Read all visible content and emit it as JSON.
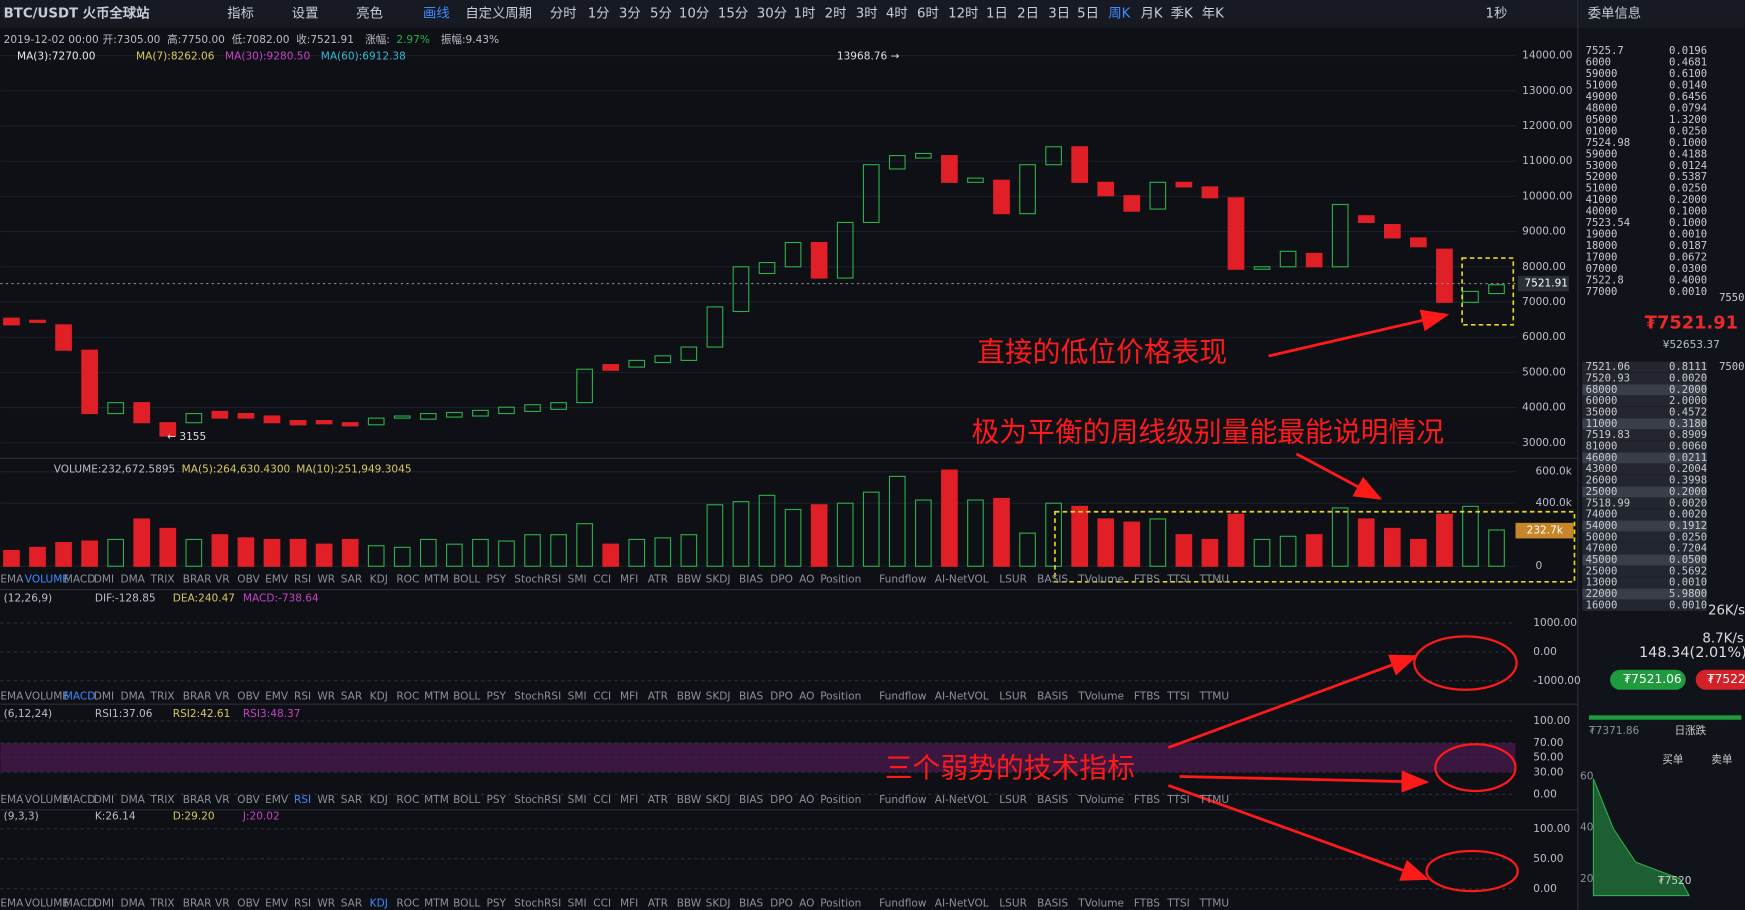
{
  "toolbar": {
    "symbol": "BTC/USDT 火币全球站",
    "tools": [
      "指标",
      "设置",
      "亮色",
      "画线"
    ],
    "period_menu": "自定义周期",
    "periods": [
      "分时",
      "1分",
      "3分",
      "5分",
      "10分",
      "15分",
      "30分",
      "1时",
      "2时",
      "3时",
      "4时",
      "6时",
      "12时",
      "1日",
      "2日",
      "3日",
      "5日",
      "周K",
      "月K",
      "季K",
      "年K"
    ],
    "active_period": "周K",
    "refresh": "1秒",
    "side_title": "委单信息"
  },
  "info": {
    "date": "2019-12-02 00:00",
    "items": [
      "开:7305.00",
      "高:7750.00",
      "低:7082.00",
      "收:7521.91"
    ],
    "change": "涨幅:",
    "change_value": "2.97%",
    "amplitude": "振幅:9.43%"
  },
  "ma": [
    {
      "label": "MA(3):7270.00",
      "color": "#e8e8e8"
    },
    {
      "label": "MA(7):8262.06",
      "color": "#d6c85a"
    },
    {
      "label": "MA(30):9280.50",
      "color": "#c543c5"
    },
    {
      "label": "MA(60):6912.38",
      "color": "#38b6d6"
    }
  ],
  "price": {
    "yticks": [
      {
        "value": 14000,
        "label": "14000.00"
      },
      {
        "value": 13000,
        "label": "13000.00"
      },
      {
        "value": 12000,
        "label": "12000.00"
      },
      {
        "value": 11000,
        "label": "11000.00"
      },
      {
        "value": 10000,
        "label": "10000.00"
      },
      {
        "value": 9000,
        "label": "9000.00"
      },
      {
        "value": 8000,
        "label": "8000.00"
      },
      {
        "value": 7000,
        "label": "7000.00"
      },
      {
        "value": 6000,
        "label": "6000.00"
      },
      {
        "value": 5000,
        "label": "5000.00"
      },
      {
        "value": 4000,
        "label": "4000.00"
      },
      {
        "value": 3000,
        "label": "3000.00"
      }
    ],
    "last": {
      "value": 7521.91,
      "label": "7521.91"
    },
    "high_label": "13968.76 →",
    "low_label": "← 3155",
    "up_color": "#2bb04a",
    "down_color": "#e01f26",
    "candles": [
      [
        6540,
        6350
      ],
      [
        6480,
        6420
      ],
      [
        6350,
        5630
      ],
      [
        5630,
        3830
      ],
      [
        3830,
        4140
      ],
      [
        4140,
        3570
      ],
      [
        3570,
        3190
      ],
      [
        3570,
        3830
      ],
      [
        3890,
        3700
      ],
      [
        3830,
        3700
      ],
      [
        3760,
        3570
      ],
      [
        3630,
        3510
      ],
      [
        3630,
        3540
      ],
      [
        3570,
        3480
      ],
      [
        3510,
        3700
      ],
      [
        3700,
        3760
      ],
      [
        3670,
        3830
      ],
      [
        3730,
        3860
      ],
      [
        3760,
        3920
      ],
      [
        3830,
        4010
      ],
      [
        3890,
        4080
      ],
      [
        3950,
        4140
      ],
      [
        4140,
        5090
      ],
      [
        5220,
        5060
      ],
      [
        5150,
        5340
      ],
      [
        5280,
        5470
      ],
      [
        5340,
        5720
      ],
      [
        5720,
        6860
      ],
      [
        6730,
        8000
      ],
      [
        7810,
        8120
      ],
      [
        8000,
        8690
      ],
      [
        8690,
        7680
      ],
      [
        7680,
        9260
      ],
      [
        9260,
        10900
      ],
      [
        10780,
        11160
      ],
      [
        11090,
        11220
      ],
      [
        11160,
        10400
      ],
      [
        10400,
        10520
      ],
      [
        10460,
        9510
      ],
      [
        9510,
        10900
      ],
      [
        10900,
        11410
      ],
      [
        11410,
        10400
      ],
      [
        10400,
        10020
      ],
      [
        10020,
        9580
      ],
      [
        9640,
        10400
      ],
      [
        10400,
        10270
      ],
      [
        10270,
        9960
      ],
      [
        9960,
        7930
      ],
      [
        7930,
        8000
      ],
      [
        8000,
        8440
      ],
      [
        8380,
        8000
      ],
      [
        8000,
        9770
      ],
      [
        9450,
        9260
      ],
      [
        9200,
        8820
      ],
      [
        8820,
        8570
      ],
      [
        8500,
        6990
      ],
      [
        6990,
        7300
      ],
      [
        7240,
        7490
      ]
    ]
  },
  "volume": {
    "header": [
      "VOLUME:232,672.5895",
      "MA(5):264,630.4300",
      "MA(10):251,949.3045"
    ],
    "yticks": [
      {
        "value": 600000,
        "label": "600.0k"
      },
      {
        "value": 400000,
        "label": "400.0k"
      },
      {
        "value": 0,
        "label": "0"
      }
    ],
    "last_label": "232.7k",
    "values": [
      100000,
      120000,
      150000,
      160000,
      170000,
      300000,
      240000,
      170000,
      200000,
      180000,
      170000,
      170000,
      140000,
      170000,
      130000,
      120000,
      170000,
      140000,
      170000,
      160000,
      200000,
      200000,
      270000,
      140000,
      170000,
      180000,
      200000,
      390000,
      410000,
      450000,
      360000,
      390000,
      400000,
      470000,
      570000,
      420000,
      610000,
      420000,
      430000,
      210000,
      400000,
      380000,
      300000,
      280000,
      300000,
      200000,
      170000,
      330000,
      170000,
      190000,
      200000,
      370000,
      300000,
      240000,
      170000,
      330000,
      380000,
      230000
    ]
  },
  "indicator_tabs": [
    "EMA",
    "VOLUME",
    "MACD",
    "DMI",
    "DMA",
    "TRIX",
    "BRAR",
    "VR",
    "OBV",
    "EMV",
    "RSI",
    "WR",
    "SAR",
    "KDJ",
    "ROC",
    "MTM",
    "BOLL",
    "PSY",
    "StochRSI",
    "SMI",
    "CCI",
    "MFI",
    "ATR",
    "BBW",
    "SKDJ",
    "BIAS",
    "DPO",
    "AO",
    "Position",
    "Fundflow",
    "AI-NetVOL",
    "LSUR",
    "BASIS",
    "TVolume",
    "FTBS",
    "TTSI",
    "TTMU"
  ],
  "macd": {
    "header": [
      "(12,26,9)",
      "DIF:-128.85",
      "DEA:240.47",
      "MACD:-738.64"
    ],
    "yticks": [
      {
        "value": 1000,
        "label": "1000.00"
      },
      {
        "value": 0,
        "label": "0.00"
      },
      {
        "value": -1000,
        "label": "-1000.00"
      }
    ]
  },
  "rsi": {
    "header": [
      "(6,12,24)",
      "RSI1:37.06",
      "RSI2:42.61",
      "RSI3:48.37"
    ],
    "yticks": [
      {
        "value": 100,
        "label": "100.00"
      },
      {
        "value": 70,
        "label": "70.00"
      },
      {
        "value": 50,
        "label": "50.00"
      },
      {
        "value": 30,
        "label": "30.00"
      },
      {
        "value": 0,
        "label": "0.00"
      }
    ]
  },
  "kdj": {
    "header": [
      "(9,3,3)",
      "K:26.14",
      "D:29.20",
      "J:20.02"
    ],
    "yticks": [
      {
        "value": 100,
        "label": "100.00"
      },
      {
        "value": 50,
        "label": "50.00"
      },
      {
        "value": 0,
        "label": "0.00"
      }
    ]
  },
  "annotations": [
    "直接的低位价格表现",
    "极为平衡的周线级别量能最能说明情况",
    "三个弱势的技术指标"
  ],
  "orderbook": {
    "asks": [
      [
        "7525.7",
        "0.0196"
      ],
      [
        "6000",
        "0.4681"
      ],
      [
        "59000",
        "0.6100"
      ],
      [
        "51000",
        "0.0140"
      ],
      [
        "49000",
        "0.6456"
      ],
      [
        "48000",
        "0.0794"
      ],
      [
        "05000",
        "1.3200"
      ],
      [
        "01000",
        "0.0250"
      ],
      [
        "7524.98",
        "0.1000"
      ],
      [
        "59000",
        "0.4188"
      ],
      [
        "53000",
        "0.0124"
      ],
      [
        "52000",
        "0.5387"
      ],
      [
        "51000",
        "0.0250"
      ],
      [
        "41000",
        "0.2000"
      ],
      [
        "40000",
        "0.1000"
      ],
      [
        "7523.54",
        "0.1000"
      ],
      [
        "19000",
        "0.0010"
      ],
      [
        "18000",
        "0.0187"
      ],
      [
        "17000",
        "0.0672"
      ],
      [
        "07000",
        "0.0300"
      ],
      [
        "7522.8",
        "0.4000"
      ],
      [
        "77000",
        "0.0010"
      ]
    ],
    "bids": [
      [
        "7521.06",
        "0.8111"
      ],
      [
        "7520.93",
        "0.0020"
      ],
      [
        "68000",
        "0.2000"
      ],
      [
        "60000",
        "2.0000"
      ],
      [
        "35000",
        "0.4572"
      ],
      [
        "11000",
        "0.3180"
      ],
      [
        "7519.83",
        "0.8909"
      ],
      [
        "81000",
        "0.0060"
      ],
      [
        "46000",
        "0.0211"
      ],
      [
        "43000",
        "0.2004"
      ],
      [
        "26000",
        "0.3998"
      ],
      [
        "25000",
        "0.2000"
      ],
      [
        "7518.99",
        "0.0020"
      ],
      [
        "74000",
        "0.0020"
      ],
      [
        "54000",
        "0.1912"
      ],
      [
        "50000",
        "0.0250"
      ],
      [
        "47000",
        "0.7204"
      ],
      [
        "45000",
        "0.0500"
      ],
      [
        "25000",
        "0.5692"
      ],
      [
        "13000",
        "0.0010"
      ],
      [
        "22000",
        "5.9800"
      ],
      [
        "16000",
        "0.0010"
      ]
    ],
    "scale_top": "7550",
    "scale_bottom": "7500",
    "last_price": "₮7521.91",
    "last_cny": "¥52653.37"
  },
  "stats": {
    "speed1": "26K/s",
    "speed2": "8.7K/s",
    "change": "148.34(2.01%)",
    "buy": "₮7521.06",
    "sell": "₮7522",
    "low": "₮7371.86",
    "day_label": "日涨跌",
    "legend_buy": "买单",
    "legend_sell": "卖单",
    "depth_ticks": [
      "60",
      "40",
      "20"
    ],
    "depth_price": "₮7520"
  }
}
